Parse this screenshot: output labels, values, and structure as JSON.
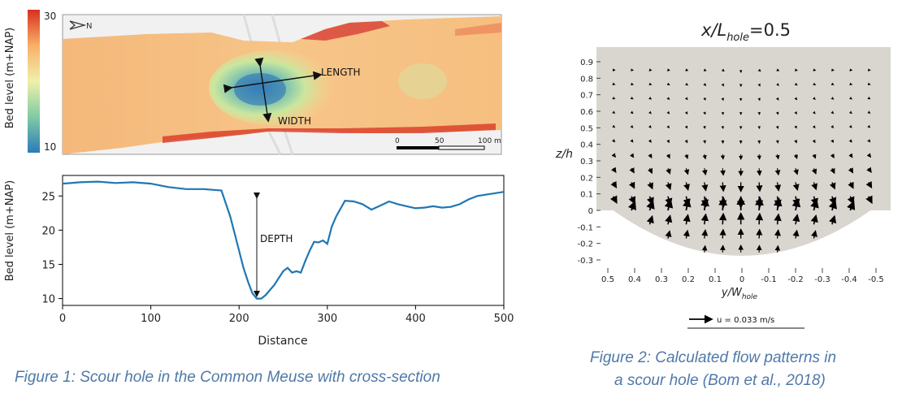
{
  "figure1": {
    "map": {
      "colorbar_label": "Bed level (m+NAP)",
      "colorbar_min": "10",
      "colorbar_max": "30",
      "north_label": "N",
      "length_label": "LENGTH",
      "width_label": "WIDTH",
      "scalebar_ticks": [
        "0",
        "50",
        "100 m"
      ]
    },
    "caption": "Figure 1: Scour hole in the Common Meuse with cross-section"
  },
  "figure2": {
    "caption_line1": "Figure 2: Calculated flow patterns in",
    "caption_line2": "a scour hole (Bom et al., 2018)",
    "title_main": "x/L",
    "title_sub": "hole",
    "title_value": "=0.5",
    "xlabel_main": "y/W",
    "xlabel_sub": "hole",
    "ylabel": "z/h",
    "xticks": [
      "0.5",
      "0.4",
      "0.3",
      "0.2",
      "0.1",
      "0",
      "-0.1",
      "-0.2",
      "-0.3",
      "-0.4",
      "-0.5"
    ],
    "yticks": [
      "0.9",
      "0.8",
      "0.7",
      "0.6",
      "0.5",
      "0.4",
      "0.3",
      "0.2",
      "0.1",
      "0",
      "-0.1",
      "-0.2",
      "-0.3"
    ],
    "legend_label": "u = 0.033 m/s"
  },
  "chart_data": [
    {
      "type": "line",
      "title": "",
      "xlabel": "Distance",
      "ylabel": "Bed level (m+NAP)",
      "xlim": [
        0,
        500
      ],
      "ylim": [
        9,
        28
      ],
      "xticks": [
        0,
        100,
        200,
        300,
        400,
        500
      ],
      "yticks": [
        10,
        15,
        20,
        25
      ],
      "grid": false,
      "series": [
        {
          "color": "#1f77b4",
          "x": [
            0,
            20,
            40,
            60,
            80,
            100,
            120,
            140,
            160,
            180,
            190,
            195,
            200,
            205,
            210,
            215,
            220,
            225,
            230,
            240,
            250,
            255,
            260,
            265,
            270,
            275,
            280,
            285,
            290,
            295,
            300,
            305,
            310,
            320,
            330,
            340,
            350,
            360,
            370,
            380,
            390,
            400,
            410,
            420,
            430,
            440,
            450,
            460,
            470,
            480,
            490,
            500
          ],
          "y": [
            26.8,
            27.0,
            27.1,
            26.9,
            27.0,
            26.8,
            26.3,
            26.0,
            26.0,
            25.8,
            22.0,
            19.5,
            17.0,
            14.5,
            12.5,
            10.8,
            10.0,
            10.0,
            10.5,
            12.0,
            14.0,
            14.5,
            13.8,
            14.0,
            13.8,
            15.5,
            17.0,
            18.3,
            18.2,
            18.5,
            18.0,
            20.5,
            22.0,
            24.3,
            24.2,
            23.8,
            23.0,
            23.6,
            24.2,
            23.8,
            23.5,
            23.2,
            23.3,
            23.5,
            23.3,
            23.4,
            23.8,
            24.5,
            25.0,
            25.2,
            25.4,
            25.6
          ]
        }
      ],
      "annotations": [
        "DEPTH"
      ]
    }
  ]
}
